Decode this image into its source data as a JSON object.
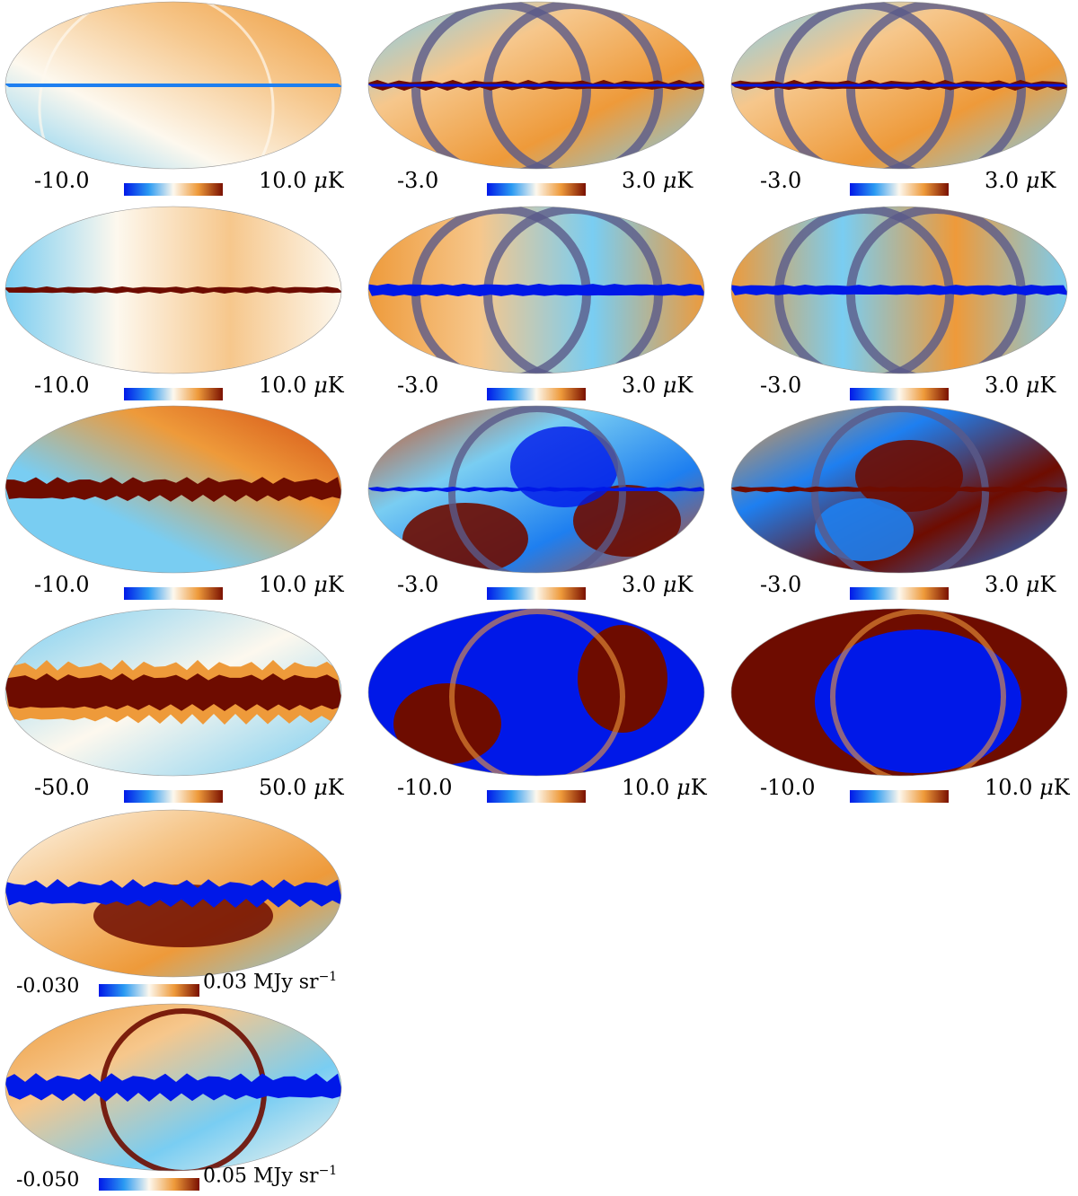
{
  "palette": {
    "deep_blue": "#0018e8",
    "blue": "#1e7ff0",
    "light_blue": "#79cdf2",
    "white": "#fdf8ee",
    "light_orange": "#f6c78c",
    "orange": "#ee9a3a",
    "red": "#d24a12",
    "dark_red": "#6e0c00"
  },
  "colorbar_gradient": [
    "#0018e8",
    "#2a9af2",
    "#fdf8ee",
    "#ee9a3a",
    "#7a1000"
  ],
  "panels": [
    {
      "row": 0,
      "col": 0,
      "style": "weak-orange",
      "min": "-10.0",
      "max": "10.0",
      "unit": "μK"
    },
    {
      "row": 0,
      "col": 1,
      "style": "rings-mixed",
      "min": "-3.0",
      "max": "3.0",
      "unit": "μK"
    },
    {
      "row": 0,
      "col": 2,
      "style": "rings-mixed",
      "min": "-3.0",
      "max": "3.0",
      "unit": "μK"
    },
    {
      "row": 1,
      "col": 0,
      "style": "weak-plane",
      "min": "-10.0",
      "max": "10.0",
      "unit": "μK"
    },
    {
      "row": 1,
      "col": 1,
      "style": "rings-orange",
      "min": "-3.0",
      "max": "3.0",
      "unit": "μK"
    },
    {
      "row": 1,
      "col": 2,
      "style": "rings-blue",
      "min": "-3.0",
      "max": "3.0",
      "unit": "μK"
    },
    {
      "row": 2,
      "col": 0,
      "style": "strong-plane",
      "min": "-10.0",
      "max": "10.0",
      "unit": "μK"
    },
    {
      "row": 2,
      "col": 1,
      "style": "lobes",
      "min": "-3.0",
      "max": "3.0",
      "unit": "μK"
    },
    {
      "row": 2,
      "col": 2,
      "style": "lobes-red",
      "min": "-3.0",
      "max": "3.0",
      "unit": "μK"
    },
    {
      "row": 3,
      "col": 0,
      "style": "dust-band",
      "min": "-50.0",
      "max": "50.0",
      "unit": "μK"
    },
    {
      "row": 3,
      "col": 1,
      "style": "saturated-blue",
      "min": "-10.0",
      "max": "10.0",
      "unit": "μK"
    },
    {
      "row": 3,
      "col": 2,
      "style": "saturated-red",
      "min": "-10.0",
      "max": "10.0",
      "unit": "μK"
    },
    {
      "row": 4,
      "col": 0,
      "style": "blue-plane",
      "min": "-0.030",
      "max": "0.03",
      "unit": "MJy sr",
      "unit_sup": "−1"
    },
    {
      "row": 5,
      "col": 0,
      "style": "blue-plane-ring",
      "min": "-0.050",
      "max": "0.05",
      "unit": "MJy sr",
      "unit_sup": "−1"
    }
  ]
}
